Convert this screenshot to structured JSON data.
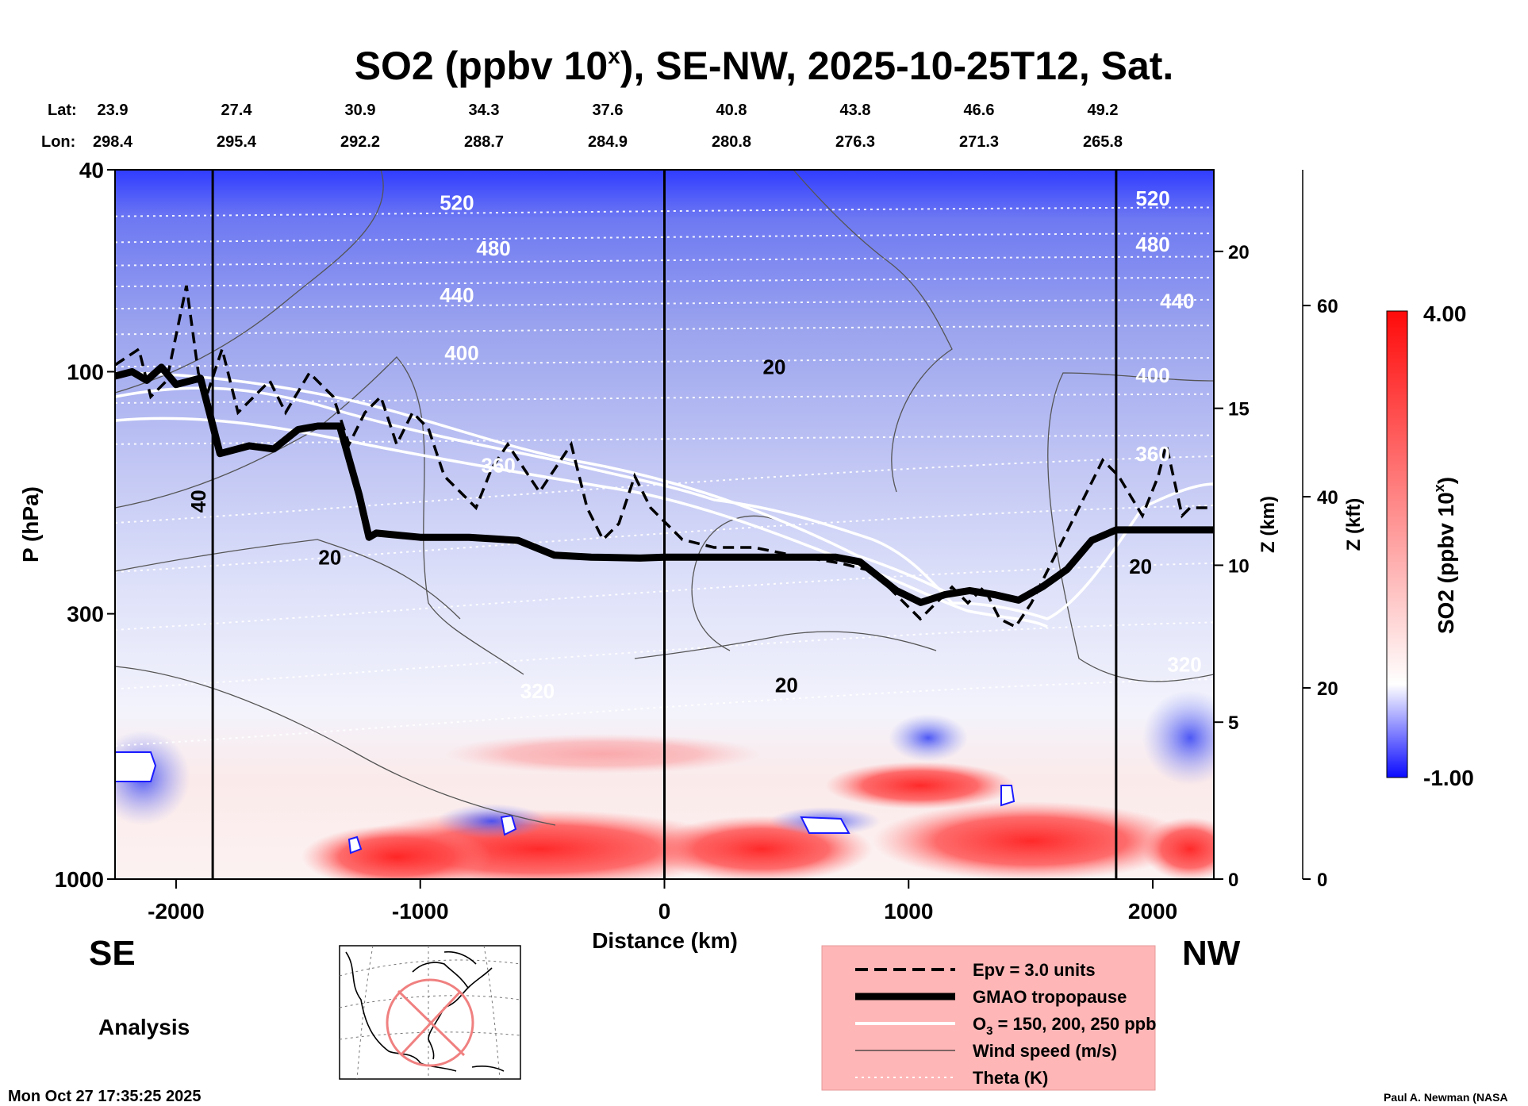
{
  "chart_data": {
    "type": "heatmap",
    "title": "SO2 (ppbv 10ˣ), SE-NW, 2025-10-25T12, Sat.",
    "title_parts": {
      "main": "SO2 (ppbv 10",
      "sup": "x",
      "rest": "), SE-NW, 2025-10-25T12, Sat."
    },
    "xlabel": "Distance (km)",
    "ylabel": "P (hPa)",
    "right_axis_1_label": "Z (km)",
    "right_axis_2_label": "Z (kft)",
    "colorbar_label": "SO2 (ppbv 10ˣ)",
    "colorbar_label_parts": {
      "main": "SO2 (ppbv 10",
      "sup": "x",
      "rest": ")"
    },
    "colorbar_range": [
      -1.0,
      4.0
    ],
    "colorbar_max_label": "4.00",
    "colorbar_min_label": "-1.00",
    "colormap": {
      "low": "#1a1aff",
      "mid": "#ffffff",
      "high": "#ff1a1a"
    },
    "xlim": [
      -2250,
      2250
    ],
    "x_ticks": [
      -2000,
      -1000,
      0,
      1000,
      2000
    ],
    "x_tick_labels": [
      "-2000",
      "-1000",
      "0",
      "1000",
      "2000"
    ],
    "ylim": [
      1000,
      40
    ],
    "y_ticks": [
      40,
      100,
      300,
      1000
    ],
    "y_tick_labels": [
      "40",
      "100",
      "300",
      "1000"
    ],
    "z_km_ticks": [
      0,
      5,
      10,
      15,
      20
    ],
    "z_km_labels": [
      "0",
      "5",
      "10",
      "15",
      "20"
    ],
    "z_kft_ticks": [
      0,
      20,
      40,
      60
    ],
    "z_kft_labels": [
      "0",
      "20",
      "40",
      "60"
    ],
    "vertical_markers_km": [
      -1850,
      0,
      1850
    ],
    "lat_header": "Lat:",
    "lon_header": "Lon:",
    "latlon_columns": [
      {
        "lat": "23.9",
        "lon": "298.4"
      },
      {
        "lat": "27.4",
        "lon": "295.4"
      },
      {
        "lat": "30.9",
        "lon": "292.2"
      },
      {
        "lat": "34.3",
        "lon": "288.7"
      },
      {
        "lat": "37.6",
        "lon": "284.9"
      },
      {
        "lat": "40.8",
        "lon": "280.8"
      },
      {
        "lat": "43.8",
        "lon": "276.3"
      },
      {
        "lat": "46.6",
        "lon": "271.3"
      },
      {
        "lat": "49.2",
        "lon": "265.8"
      }
    ],
    "tropopause_hPa": {
      "x": [
        -2250,
        -2180,
        -2120,
        -2060,
        -2000,
        -1900,
        -1860,
        -1820,
        -1700,
        -1600,
        -1500,
        -1420,
        -1330,
        -1250,
        -1210,
        -1180,
        -1000,
        -900,
        -800,
        -600,
        -450,
        -300,
        -100,
        0,
        200,
        400,
        700,
        800,
        950,
        1050,
        1150,
        1250,
        1350,
        1450,
        1550,
        1650,
        1750,
        1850,
        2000,
        2250
      ],
      "p": [
        102,
        100,
        104,
        98,
        106,
        103,
        122,
        145,
        140,
        142,
        130,
        128,
        128,
        175,
        212,
        208,
        212,
        212,
        212,
        215,
        230,
        232,
        233,
        232,
        232,
        232,
        232,
        237,
        270,
        285,
        275,
        270,
        275,
        282,
        265,
        245,
        215,
        205,
        205,
        205
      ]
    },
    "contour_labels": {
      "theta": [
        {
          "x": -850,
          "p": 48,
          "text": "520"
        },
        {
          "x": 2000,
          "p": 47,
          "text": "520"
        },
        {
          "x": -700,
          "p": 59,
          "text": "480"
        },
        {
          "x": 2000,
          "p": 58,
          "text": "480"
        },
        {
          "x": -850,
          "p": 73,
          "text": "440"
        },
        {
          "x": 2100,
          "p": 75,
          "text": "440"
        },
        {
          "x": -830,
          "p": 95,
          "text": "400"
        },
        {
          "x": 2000,
          "p": 105,
          "text": "400"
        },
        {
          "x": -680,
          "p": 158,
          "text": "360"
        },
        {
          "x": 2000,
          "p": 150,
          "text": "360"
        },
        {
          "x": -520,
          "p": 440,
          "text": "320"
        },
        {
          "x": 2130,
          "p": 390,
          "text": "320"
        }
      ],
      "wind": [
        {
          "x": 450,
          "p": 101,
          "text": "20"
        },
        {
          "x": -1370,
          "p": 240,
          "text": "20"
        },
        {
          "x": 500,
          "p": 428,
          "text": "20"
        },
        {
          "x": 1950,
          "p": 250,
          "text": "20"
        },
        {
          "x": -1880,
          "p": 180,
          "text": "40"
        }
      ]
    },
    "legend": [
      {
        "style": "dashed",
        "label": "Epv = 3.0 units"
      },
      {
        "style": "thick",
        "label": "GMAO tropopause"
      },
      {
        "style": "white",
        "label": "O",
        "sub": "3",
        "rest": " = 150, 200, 250 ppb"
      },
      {
        "style": "thin",
        "label": "Wind speed (m/s)"
      },
      {
        "style": "dotted",
        "label": "Theta (K)"
      }
    ],
    "left_direction": "SE",
    "right_direction": "NW",
    "analysis_label": "Analysis"
  },
  "footer": {
    "timestamp": "Mon Oct 27 17:35:25 2025",
    "credit": "Paul A. Newman (NASA"
  }
}
